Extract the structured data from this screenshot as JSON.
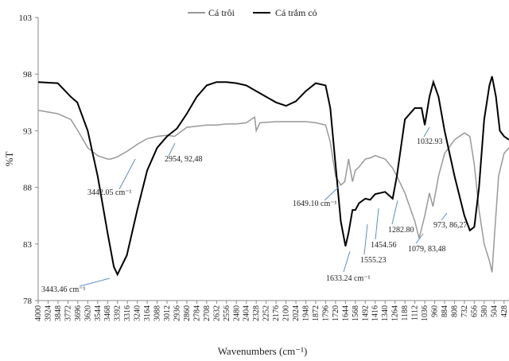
{
  "chart_data": {
    "type": "line",
    "xlabel": "Wavenumbers (cm⁻¹)",
    "ylabel": "%T",
    "xlim": [
      4000,
      390
    ],
    "ylim": [
      78,
      103
    ],
    "xticks": [
      4000,
      3924,
      3848,
      3772,
      3696,
      3620,
      3544,
      3468,
      3392,
      3316,
      3240,
      3164,
      3088,
      3012,
      2936,
      2860,
      2784,
      2708,
      2632,
      2556,
      2480,
      2404,
      2328,
      2252,
      2176,
      2100,
      2024,
      1948,
      1872,
      1796,
      1720,
      1644,
      1568,
      1492,
      1416,
      1340,
      1264,
      1188,
      1112,
      1036,
      960,
      884,
      808,
      732,
      656,
      580,
      504,
      428
    ],
    "yticks": [
      78,
      83,
      88,
      93,
      98,
      103
    ],
    "grid": false,
    "legend": "top",
    "series": [
      {
        "name": "Cá trôi",
        "color": "#999999",
        "x": [
          4000,
          3850,
          3750,
          3696,
          3620,
          3544,
          3468,
          3442,
          3392,
          3316,
          3240,
          3164,
          3088,
          3012,
          2954,
          2860,
          2784,
          2708,
          2632,
          2556,
          2480,
          2404,
          2340,
          2328,
          2300,
          2176,
          2024,
          1948,
          1872,
          1796,
          1760,
          1720,
          1680,
          1649,
          1620,
          1590,
          1568,
          1540,
          1492,
          1454,
          1416,
          1340,
          1282,
          1250,
          1188,
          1112,
          1079,
          1036,
          1000,
          973,
          930,
          884,
          808,
          732,
          690,
          656,
          620,
          580,
          540,
          520,
          500,
          470,
          428,
          390
        ],
        "values": [
          94.8,
          94.5,
          94,
          93,
          91.5,
          90.8,
          90.5,
          90.5,
          90.7,
          91.2,
          91.8,
          92.3,
          92.5,
          92.6,
          92.5,
          93.3,
          93.4,
          93.5,
          93.5,
          93.6,
          93.6,
          93.7,
          94.2,
          93,
          93.7,
          93.8,
          93.8,
          93.8,
          93.7,
          93.5,
          92,
          89,
          88.2,
          88.5,
          90.5,
          88.5,
          89.5,
          89.8,
          90.5,
          90.6,
          90.8,
          90.5,
          89.7,
          89,
          87.5,
          85,
          83.5,
          85.5,
          87.5,
          86.3,
          89,
          91,
          92.2,
          92.8,
          92.5,
          90,
          86,
          83,
          81.5,
          80.5,
          84,
          89,
          91,
          91.5
        ]
      },
      {
        "name": "Cá trắm cỏ",
        "color": "#000000",
        "x": [
          4000,
          3850,
          3750,
          3700,
          3620,
          3544,
          3468,
          3420,
          3392,
          3320,
          3240,
          3164,
          3088,
          3012,
          2936,
          2860,
          2784,
          2708,
          2632,
          2556,
          2480,
          2404,
          2328,
          2252,
          2176,
          2100,
          2024,
          1948,
          1872,
          1796,
          1760,
          1720,
          1680,
          1644,
          1620,
          1590,
          1568,
          1540,
          1492,
          1454,
          1416,
          1340,
          1282,
          1250,
          1188,
          1112,
          1060,
          1036,
          1000,
          970,
          930,
          884,
          808,
          732,
          690,
          656,
          620,
          580,
          540,
          520,
          490,
          460,
          428,
          390
        ],
        "values": [
          97.3,
          97.2,
          96,
          95.5,
          93,
          89,
          84,
          81,
          80.3,
          82,
          86,
          89.5,
          91.5,
          92.5,
          93.2,
          94.5,
          96,
          97,
          97.3,
          97.3,
          97.2,
          97,
          96.5,
          96,
          95.5,
          95.2,
          95.6,
          96.5,
          97.2,
          97,
          95,
          90,
          85,
          82.8,
          84,
          86,
          86,
          86.6,
          87,
          86.9,
          87.4,
          87.6,
          87,
          89,
          94,
          95,
          95,
          93.5,
          96,
          97.3,
          96,
          93,
          89,
          85.5,
          84.2,
          84.5,
          88,
          94,
          97,
          97.8,
          96,
          93,
          92.5,
          92.2
        ]
      }
    ],
    "annotations": [
      "3442.05 cm⁻¹",
      "2954, 92,48",
      "3443.46 cm⁻¹",
      "1649.10 cm⁻¹",
      "1633.24 cm⁻¹",
      "1555.23",
      "1454.56",
      "1282.80",
      "1032.93",
      "973, 86,27",
      "1079, 83,48"
    ]
  }
}
